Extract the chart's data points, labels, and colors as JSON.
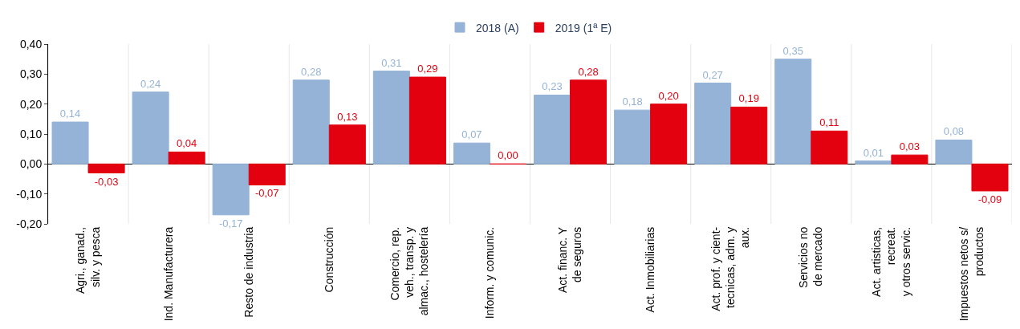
{
  "chart_data": {
    "type": "bar",
    "categories": [
      "Agri., ganad.,\nsilv. y pesca",
      "Ind. Manufacturera",
      "Resto de industria",
      "Construcción",
      "Comercio, rep.\nveh., transp. y\nalmac., hostelería",
      "Inform. y comunic.",
      "Act. financ. Y\nde seguros",
      "Act. Inmobiliarias",
      "Act. prof. y cient-\ntecnicas, adm. y\naux.",
      "Servicios no\nde mercado",
      "Act. artisticas,\nrecreat.\ny otros servic.",
      "Impuestos netos s/\nproductos"
    ],
    "series": [
      {
        "name": "2018 (A)",
        "color": "#95b3d7",
        "values": [
          0.14,
          0.24,
          -0.17,
          0.28,
          0.31,
          0.07,
          0.23,
          0.18,
          0.27,
          0.35,
          0.01,
          0.08
        ],
        "value_labels": [
          "0,14",
          "0,24",
          "-0,17",
          "0,28",
          "0,31",
          "0,07",
          "0,23",
          "0,18",
          "0,27",
          "0,35",
          "0,01",
          "0,08"
        ]
      },
      {
        "name": "2019 (1ª E)",
        "color": "#e3000f",
        "values": [
          -0.03,
          0.04,
          -0.07,
          0.13,
          0.29,
          0.0,
          0.28,
          0.2,
          0.19,
          0.11,
          0.03,
          -0.09
        ],
        "value_labels": [
          "-0,03",
          "0,04",
          "-0,07",
          "0,13",
          "0,29",
          "0,00",
          "0,28",
          "0,20",
          "0,19",
          "0,11",
          "0,03",
          "-0,09"
        ]
      }
    ],
    "ylim": [
      -0.2,
      0.4
    ],
    "yticks": [
      {
        "value": -0.2,
        "label": "-0,20"
      },
      {
        "value": -0.1,
        "label": "-0,10"
      },
      {
        "value": 0,
        "label": "0,00"
      },
      {
        "value": 0.1,
        "label": "0,10"
      },
      {
        "value": 0.2,
        "label": "0,20"
      },
      {
        "value": 0.3,
        "label": "0,30"
      },
      {
        "value": 0.4,
        "label": "0,40"
      }
    ],
    "grid": "x",
    "legend": "top"
  }
}
